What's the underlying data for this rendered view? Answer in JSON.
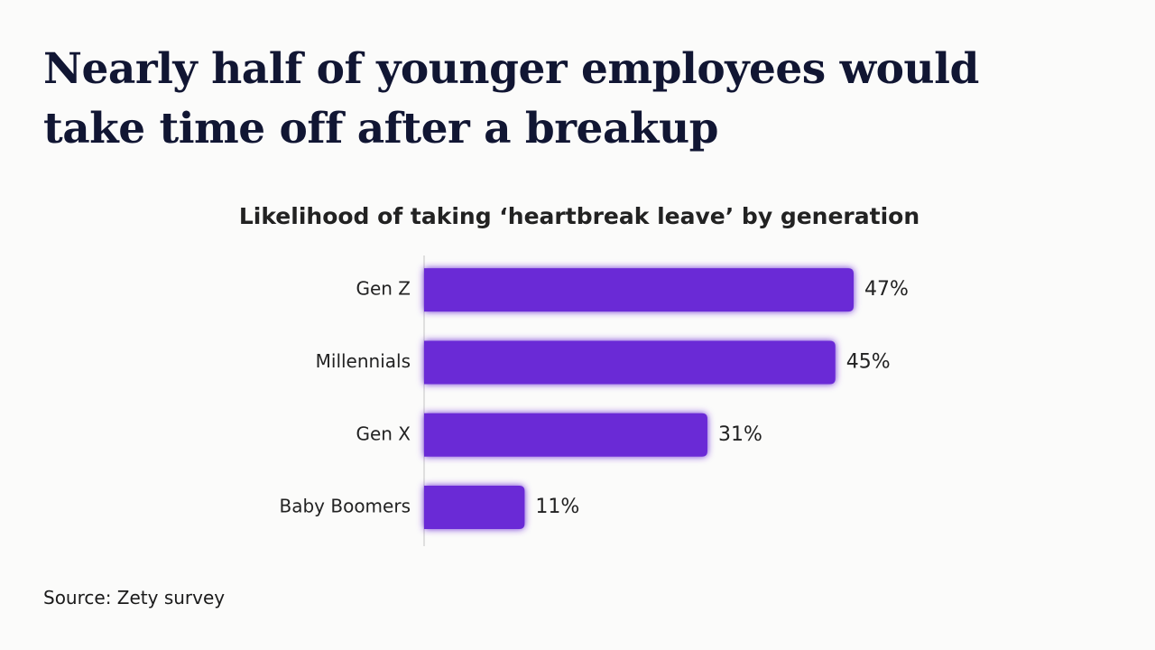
{
  "chart_data": {
    "type": "bar",
    "orientation": "horizontal",
    "title": "Nearly half of younger employees would take time off after a breakup",
    "subtitle": "Likelihood of taking ‘heartbreak leave’ by generation",
    "categories": [
      "Gen Z",
      "Millennials",
      "Gen X",
      "Baby Boomers"
    ],
    "values": [
      47,
      45,
      31,
      11
    ],
    "value_labels": [
      "47%",
      "45%",
      "31%",
      "11%"
    ],
    "color": "#6b2bd6",
    "source": "Source: Zety survey"
  }
}
